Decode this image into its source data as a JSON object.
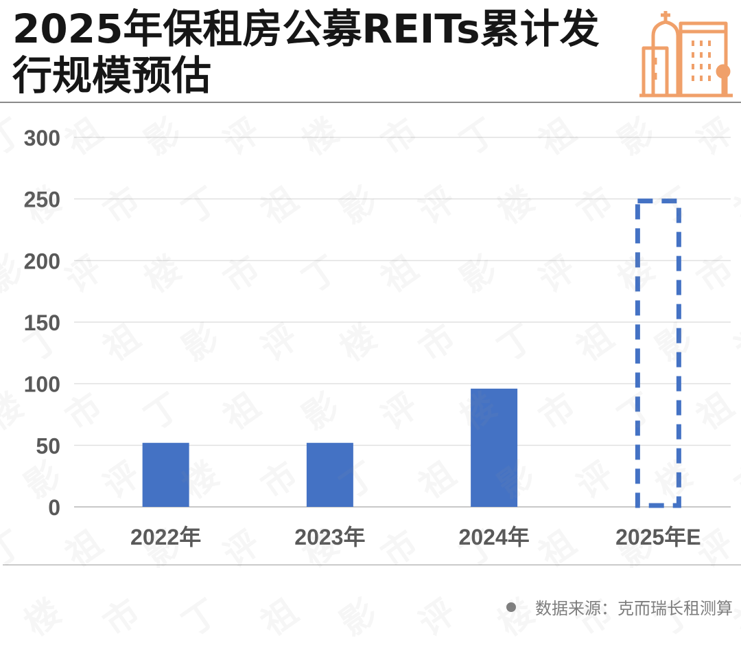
{
  "header": {
    "title": "2025年保租房公募REITs累计发行规模预估"
  },
  "logo": {
    "icon": "city-buildings-icon",
    "color": "#f0a06a"
  },
  "source": {
    "text": "数据来源：克而瑞长租测算"
  },
  "colors": {
    "bar": "#4472c4",
    "grid": "#e0e0e0",
    "axis_text": "#595959"
  },
  "chart_data": {
    "type": "bar",
    "title": "2025年保租房公募REITs累计发行规模预估",
    "categories": [
      "2022年",
      "2023年",
      "2024年",
      "2025年E"
    ],
    "values": [
      52,
      52,
      96,
      250
    ],
    "styles": [
      "solid",
      "solid",
      "solid",
      "dashed-outline"
    ],
    "xlabel": "",
    "ylabel": "",
    "ylim": [
      0,
      300
    ],
    "yticks": [
      0,
      50,
      100,
      150,
      200,
      250,
      300
    ],
    "grid": true,
    "legend": "none"
  }
}
